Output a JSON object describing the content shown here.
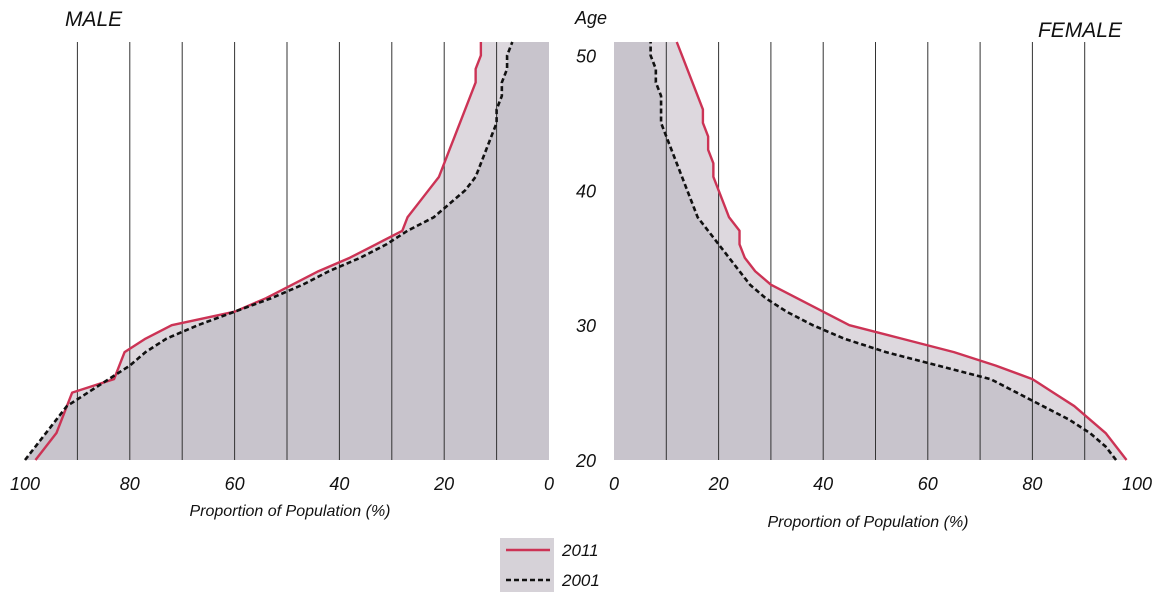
{
  "chart_data": [
    {
      "type": "area",
      "title": "MALE",
      "xlabel": "Proportion of Population (%)",
      "ylabel": "Age",
      "xlim": [
        100,
        0
      ],
      "ylim": [
        20,
        51
      ],
      "x_ticks": [
        100,
        80,
        60,
        40,
        20,
        0
      ],
      "y_ticks": [
        20,
        30,
        40,
        50
      ],
      "grid": "vertical every 10%",
      "fill_color": "#c8c4cc",
      "series": [
        {
          "name": "2011",
          "color": "#cc3355",
          "style": "solid",
          "points": [
            [
              98,
              20
            ],
            [
              96,
              21
            ],
            [
              94,
              22
            ],
            [
              93,
              23
            ],
            [
              92,
              24
            ],
            [
              91,
              25
            ],
            [
              83,
              26
            ],
            [
              82,
              27
            ],
            [
              81,
              28
            ],
            [
              77,
              29
            ],
            [
              72,
              30
            ],
            [
              60,
              31
            ],
            [
              54,
              32
            ],
            [
              49,
              33
            ],
            [
              44,
              34
            ],
            [
              38,
              35
            ],
            [
              33,
              36
            ],
            [
              28,
              37
            ],
            [
              27,
              38
            ],
            [
              25,
              39
            ],
            [
              23,
              40
            ],
            [
              21,
              41
            ],
            [
              20,
              42
            ],
            [
              19,
              43
            ],
            [
              18,
              44
            ],
            [
              17,
              45
            ],
            [
              16,
              46
            ],
            [
              15,
              47
            ],
            [
              14,
              48
            ],
            [
              14,
              49
            ],
            [
              13,
              50
            ],
            [
              13,
              51
            ]
          ]
        },
        {
          "name": "2001",
          "color": "#111111",
          "style": "dashed",
          "points": [
            [
              100,
              20
            ],
            [
              98,
              21
            ],
            [
              96,
              22
            ],
            [
              94,
              23
            ],
            [
              92,
              24
            ],
            [
              88,
              25
            ],
            [
              84,
              26
            ],
            [
              80,
              27
            ],
            [
              77,
              28
            ],
            [
              73,
              29
            ],
            [
              67,
              30
            ],
            [
              60,
              31
            ],
            [
              53,
              32
            ],
            [
              47,
              33
            ],
            [
              42,
              34
            ],
            [
              36,
              35
            ],
            [
              31,
              36
            ],
            [
              27,
              37
            ],
            [
              22,
              38
            ],
            [
              19,
              39
            ],
            [
              16,
              40
            ],
            [
              14,
              41
            ],
            [
              13,
              42
            ],
            [
              12,
              43
            ],
            [
              11,
              44
            ],
            [
              10,
              45
            ],
            [
              10,
              46
            ],
            [
              9,
              47
            ],
            [
              9,
              48
            ],
            [
              8,
              49
            ],
            [
              8,
              50
            ],
            [
              7,
              51
            ]
          ]
        }
      ]
    },
    {
      "type": "area",
      "title": "FEMALE",
      "xlabel": "Proportion of Population (%)",
      "ylabel": "Age",
      "xlim": [
        0,
        100
      ],
      "ylim": [
        20,
        51
      ],
      "x_ticks": [
        0,
        20,
        40,
        60,
        80,
        100
      ],
      "y_ticks": [
        20,
        30,
        40,
        50
      ],
      "grid": "vertical every 10%",
      "fill_color": "#c8c4cc",
      "series": [
        {
          "name": "2011",
          "color": "#cc3355",
          "style": "solid",
          "points": [
            [
              98,
              20
            ],
            [
              96,
              21
            ],
            [
              94,
              22
            ],
            [
              91,
              23
            ],
            [
              88,
              24
            ],
            [
              84,
              25
            ],
            [
              80,
              26
            ],
            [
              73,
              27
            ],
            [
              65,
              28
            ],
            [
              55,
              29
            ],
            [
              45,
              30
            ],
            [
              40,
              31
            ],
            [
              35,
              32
            ],
            [
              30,
              33
            ],
            [
              27,
              34
            ],
            [
              25,
              35
            ],
            [
              24,
              36
            ],
            [
              24,
              37
            ],
            [
              22,
              38
            ],
            [
              21,
              39
            ],
            [
              20,
              40
            ],
            [
              19,
              41
            ],
            [
              19,
              42
            ],
            [
              18,
              43
            ],
            [
              18,
              44
            ],
            [
              17,
              45
            ],
            [
              17,
              46
            ],
            [
              16,
              47
            ],
            [
              15,
              48
            ],
            [
              14,
              49
            ],
            [
              13,
              50
            ],
            [
              12,
              51
            ]
          ]
        },
        {
          "name": "2001",
          "color": "#111111",
          "style": "dashed",
          "points": [
            [
              96,
              20
            ],
            [
              94,
              21
            ],
            [
              91,
              22
            ],
            [
              87,
              23
            ],
            [
              82,
              24
            ],
            [
              77,
              25
            ],
            [
              72,
              26
            ],
            [
              62,
              27
            ],
            [
              52,
              28
            ],
            [
              44,
              29
            ],
            [
              38,
              30
            ],
            [
              33,
              31
            ],
            [
              29,
              32
            ],
            [
              26,
              33
            ],
            [
              24,
              34
            ],
            [
              22,
              35
            ],
            [
              20,
              36
            ],
            [
              18,
              37
            ],
            [
              16,
              38
            ],
            [
              15,
              39
            ],
            [
              14,
              40
            ],
            [
              13,
              41
            ],
            [
              12,
              42
            ],
            [
              11,
              43
            ],
            [
              10,
              44
            ],
            [
              9,
              45
            ],
            [
              9,
              46
            ],
            [
              9,
              47
            ],
            [
              8,
              48
            ],
            [
              8,
              49
            ],
            [
              7,
              50
            ],
            [
              7,
              51
            ]
          ]
        }
      ]
    }
  ],
  "age_axis_label": "Age",
  "age_ticks": [
    "20",
    "30",
    "40",
    "50"
  ],
  "legend": [
    {
      "label": "2011",
      "color": "#cc3355",
      "style": "solid"
    },
    {
      "label": "2001",
      "color": "#111111",
      "style": "dashed"
    }
  ]
}
